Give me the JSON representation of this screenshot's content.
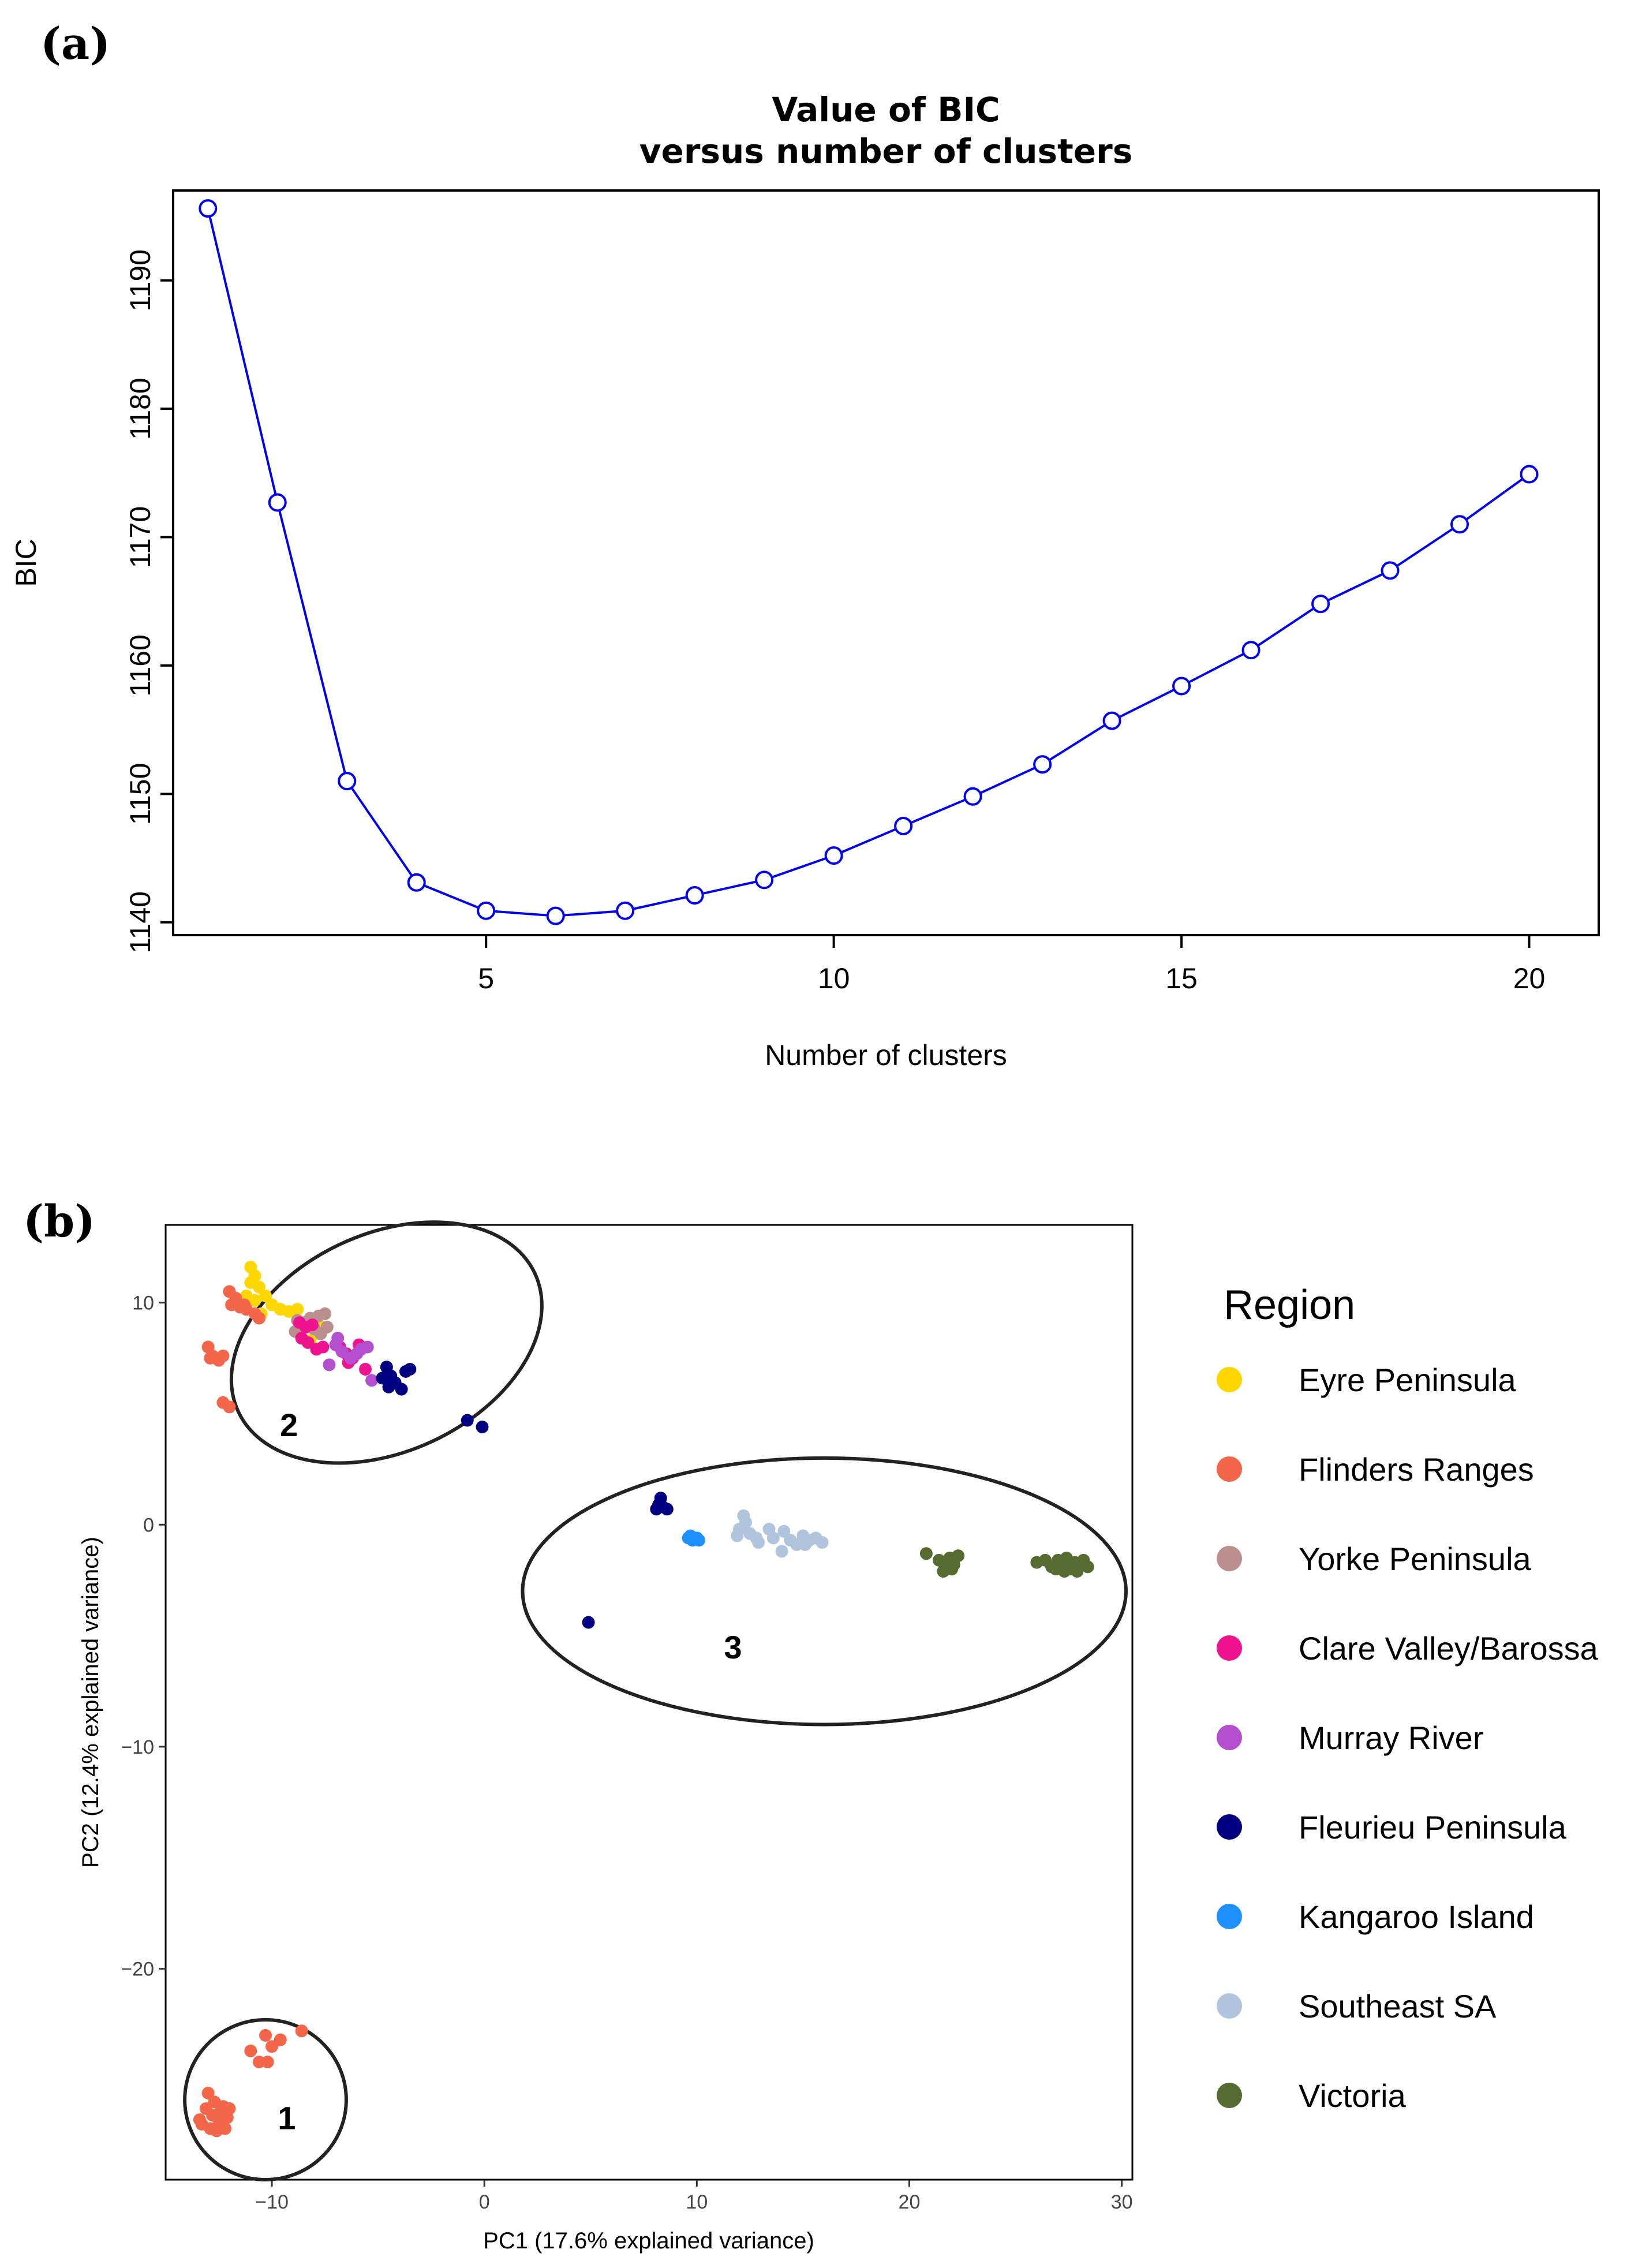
{
  "panels": {
    "a": {
      "label": "(a)"
    },
    "b": {
      "label": "(b)"
    }
  },
  "chart_data": [
    {
      "type": "line",
      "panel": "a",
      "title_line1": "Value of BIC",
      "title_line2": "versus number of clusters",
      "xlabel": "Number of clusters",
      "ylabel": "BIC",
      "xlim": [
        0.5,
        21
      ],
      "ylim": [
        1139,
        1197
      ],
      "xticks": [
        5,
        10,
        15,
        20
      ],
      "yticks": [
        1140,
        1150,
        1160,
        1170,
        1180,
        1190
      ],
      "line_color": "#0000ee",
      "series": [
        {
          "name": "BIC",
          "x": [
            1,
            2,
            3,
            4,
            5,
            6,
            7,
            8,
            9,
            10,
            11,
            12,
            13,
            14,
            15,
            16,
            17,
            18,
            19,
            20
          ],
          "values": [
            1195.6,
            1172.7,
            1151.0,
            1143.1,
            1140.9,
            1140.5,
            1140.9,
            1142.1,
            1143.3,
            1145.2,
            1147.5,
            1149.8,
            1152.3,
            1155.7,
            1158.4,
            1161.2,
            1164.8,
            1167.4,
            1171.0,
            1174.9
          ]
        }
      ]
    },
    {
      "type": "scatter",
      "panel": "b",
      "xlabel": "PC1 (17.6% explained variance)",
      "ylabel": "PC2 (12.4% explained variance)",
      "xlim": [
        -15,
        30.5
      ],
      "ylim": [
        -29.5,
        13.5
      ],
      "xticks": [
        -10,
        0,
        10,
        20,
        30
      ],
      "yticks": [
        10,
        0,
        -10,
        -20
      ],
      "legend_title": "Region",
      "clusters": [
        {
          "label": "2",
          "cx": -4.6,
          "cy": 8.2,
          "rx": 7.7,
          "ry": 4.9,
          "angle": -25,
          "label_x": -9.2,
          "label_y": 4.5
        },
        {
          "label": "3",
          "cx": 16.0,
          "cy": -3.0,
          "rx": 14.2,
          "ry": 6.0,
          "angle": 0,
          "label_x": 11.7,
          "label_y": -5.5
        },
        {
          "label": "1",
          "cx": -10.3,
          "cy": -25.9,
          "rx": 3.8,
          "ry": 3.6,
          "angle": 0,
          "label_x": -9.3,
          "label_y": -26.7
        }
      ],
      "series": [
        {
          "name": "Eyre Peninsula",
          "color": "#ffd700",
          "points": [
            [
              -11.0,
              11.6
            ],
            [
              -10.8,
              11.2
            ],
            [
              -11.0,
              10.9
            ],
            [
              -10.6,
              10.7
            ],
            [
              -11.2,
              10.3
            ],
            [
              -10.8,
              10.1
            ],
            [
              -10.3,
              10.3
            ],
            [
              -10.0,
              9.9
            ],
            [
              -9.6,
              9.7
            ],
            [
              -9.2,
              9.6
            ],
            [
              -8.8,
              9.7
            ],
            [
              -10.5,
              9.5
            ],
            [
              -8.2,
              8.3
            ],
            [
              -7.9,
              8.6
            ],
            [
              -7.6,
              8.9
            ]
          ]
        },
        {
          "name": "Flinders Ranges",
          "color": "#f4664a",
          "points": [
            [
              -12.0,
              10.5
            ],
            [
              -11.7,
              10.2
            ],
            [
              -11.9,
              9.9
            ],
            [
              -11.5,
              9.8
            ],
            [
              -11.2,
              9.7
            ],
            [
              -10.8,
              9.5
            ],
            [
              -10.6,
              9.3
            ],
            [
              -11.3,
              9.9
            ],
            [
              -13.0,
              8.0
            ],
            [
              -12.8,
              7.6
            ],
            [
              -12.5,
              7.4
            ],
            [
              -12.9,
              7.5
            ],
            [
              -12.3,
              7.6
            ],
            [
              -12.3,
              5.5
            ],
            [
              -12.0,
              5.3
            ],
            [
              -10.3,
              -23.0
            ],
            [
              -10.0,
              -23.5
            ],
            [
              -9.6,
              -23.2
            ],
            [
              -8.6,
              -22.8
            ],
            [
              -11.0,
              -23.7
            ],
            [
              -10.6,
              -24.2
            ],
            [
              -10.2,
              -24.2
            ],
            [
              -13.0,
              -25.6
            ],
            [
              -12.7,
              -26.0
            ],
            [
              -12.3,
              -26.2
            ],
            [
              -13.1,
              -26.3
            ],
            [
              -12.8,
              -26.6
            ],
            [
              -12.5,
              -26.8
            ],
            [
              -12.1,
              -26.7
            ],
            [
              -13.3,
              -27.0
            ],
            [
              -12.9,
              -27.2
            ],
            [
              -12.6,
              -27.3
            ],
            [
              -12.2,
              -27.2
            ],
            [
              -12.4,
              -26.4
            ],
            [
              -13.4,
              -26.8
            ],
            [
              -12.0,
              -26.3
            ]
          ]
        },
        {
          "name": "Yorke Peninsula",
          "color": "#bc8f8f",
          "points": [
            [
              -8.8,
              9.2
            ],
            [
              -8.5,
              9.1
            ],
            [
              -8.2,
              9.3
            ],
            [
              -7.8,
              9.4
            ],
            [
              -7.5,
              9.5
            ],
            [
              -8.9,
              8.7
            ],
            [
              -8.0,
              8.8
            ],
            [
              -7.7,
              8.6
            ],
            [
              -7.4,
              8.9
            ]
          ]
        },
        {
          "name": "Clare Valley/Barossa",
          "color": "#f0138f",
          "points": [
            [
              -8.7,
              9.1
            ],
            [
              -8.4,
              8.9
            ],
            [
              -8.1,
              9.0
            ],
            [
              -8.6,
              8.4
            ],
            [
              -8.3,
              8.2
            ],
            [
              -7.9,
              7.9
            ],
            [
              -7.6,
              8.0
            ],
            [
              -6.8,
              8.0
            ],
            [
              -6.5,
              7.7
            ],
            [
              -6.2,
              7.5
            ],
            [
              -5.9,
              8.1
            ],
            [
              -5.6,
              7.0
            ],
            [
              -6.4,
              7.3
            ]
          ]
        },
        {
          "name": "Murray River",
          "color": "#b44fd0",
          "points": [
            [
              -7.3,
              7.2
            ],
            [
              -7.0,
              8.1
            ],
            [
              -6.7,
              7.8
            ],
            [
              -6.3,
              7.5
            ],
            [
              -6.0,
              7.7
            ],
            [
              -5.8,
              7.9
            ],
            [
              -5.5,
              8.0
            ],
            [
              -5.3,
              6.5
            ],
            [
              -6.9,
              8.4
            ]
          ]
        },
        {
          "name": "Fleurieu Peninsula",
          "color": "#000080",
          "points": [
            [
              -4.6,
              7.1
            ],
            [
              -4.4,
              6.7
            ],
            [
              -4.2,
              6.4
            ],
            [
              -3.9,
              6.1
            ],
            [
              -3.7,
              6.9
            ],
            [
              -3.5,
              7.0
            ],
            [
              -4.8,
              6.6
            ],
            [
              -4.5,
              6.2
            ],
            [
              -0.8,
              4.7
            ],
            [
              -0.1,
              4.4
            ],
            [
              8.3,
              1.2
            ],
            [
              8.2,
              0.9
            ],
            [
              8.4,
              0.8
            ],
            [
              8.6,
              0.7
            ],
            [
              8.1,
              0.7
            ],
            [
              4.9,
              -4.4
            ]
          ]
        },
        {
          "name": "Kangaroo Island",
          "color": "#1e90ff",
          "points": [
            [
              9.6,
              -0.6
            ],
            [
              9.8,
              -0.7
            ],
            [
              10.0,
              -0.6
            ],
            [
              10.1,
              -0.7
            ],
            [
              9.7,
              -0.5
            ]
          ]
        },
        {
          "name": "Southeast SA",
          "color": "#b0c4de",
          "points": [
            [
              12.2,
              0.4
            ],
            [
              12.3,
              0.1
            ],
            [
              12.0,
              -0.2
            ],
            [
              12.5,
              -0.4
            ],
            [
              12.8,
              -0.6
            ],
            [
              11.9,
              -0.5
            ],
            [
              13.4,
              -0.2
            ],
            [
              13.6,
              -0.6
            ],
            [
              14.1,
              -0.3
            ],
            [
              14.4,
              -0.7
            ],
            [
              14.7,
              -0.9
            ],
            [
              15.0,
              -0.5
            ],
            [
              15.3,
              -0.7
            ],
            [
              15.6,
              -0.6
            ],
            [
              15.9,
              -0.8
            ],
            [
              14.0,
              -1.2
            ],
            [
              12.9,
              -0.8
            ],
            [
              15.1,
              -0.9
            ]
          ]
        },
        {
          "name": "Victoria",
          "color": "#556b2f",
          "points": [
            [
              20.8,
              -1.3
            ],
            [
              21.4,
              -1.6
            ],
            [
              21.7,
              -1.9
            ],
            [
              21.9,
              -1.5
            ],
            [
              22.1,
              -1.8
            ],
            [
              22.3,
              -1.4
            ],
            [
              21.6,
              -2.1
            ],
            [
              22.0,
              -2.0
            ],
            [
              26.0,
              -1.7
            ],
            [
              26.4,
              -1.6
            ],
            [
              26.7,
              -1.9
            ],
            [
              27.0,
              -1.6
            ],
            [
              27.2,
              -1.8
            ],
            [
              27.4,
              -1.5
            ],
            [
              27.6,
              -2.0
            ],
            [
              27.8,
              -1.7
            ],
            [
              28.0,
              -1.8
            ],
            [
              28.2,
              -1.6
            ],
            [
              28.4,
              -1.9
            ],
            [
              26.9,
              -2.0
            ],
            [
              27.3,
              -2.1
            ],
            [
              27.9,
              -2.1
            ]
          ]
        }
      ]
    }
  ]
}
